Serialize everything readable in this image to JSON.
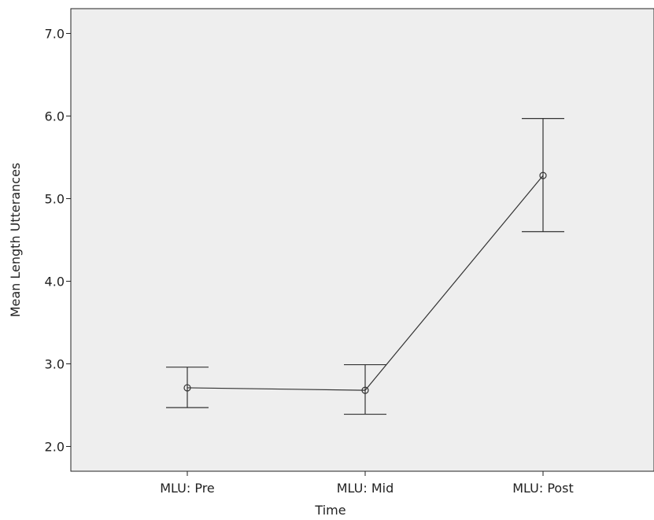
{
  "chart_data": {
    "type": "line",
    "title": "",
    "xlabel": "Time",
    "ylabel": "Mean Length Utterances",
    "categories": [
      "MLU: Pre",
      "MLU: Mid",
      "MLU: Post"
    ],
    "series": [
      {
        "values": [
          2.71,
          2.68,
          5.28
        ],
        "error_low": [
          2.47,
          2.39,
          4.6
        ],
        "error_high": [
          2.96,
          2.99,
          5.97
        ]
      }
    ],
    "y_ticks": [
      "2.0",
      "3.0",
      "4.0",
      "5.0",
      "6.0",
      "7.0"
    ],
    "ylim": [
      1.7,
      7.3
    ],
    "grid": false,
    "legend": "none",
    "colors": {
      "plot_background": "#eeeeee",
      "line": "#333333",
      "marker": "#333333",
      "axis": "#222222"
    }
  }
}
